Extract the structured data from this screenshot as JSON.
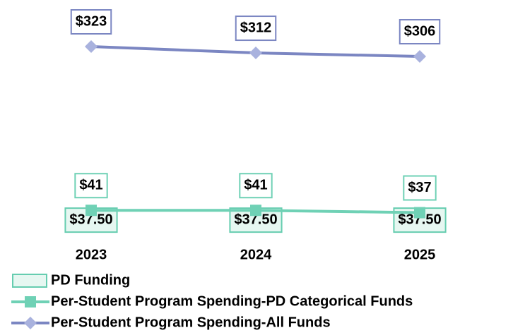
{
  "chart_data": {
    "type": "line",
    "categories": [
      "2023",
      "2024",
      "2025"
    ],
    "ylim": [
      0,
      340
    ],
    "series": [
      {
        "name": "PD Funding",
        "type": "bar",
        "color": "#e6f7f1",
        "border": "#66cdb0",
        "values": [
          37.5,
          37.5,
          37.5
        ],
        "value_labels": [
          "$37.50",
          "$37.50",
          "$37.50"
        ]
      },
      {
        "name": "Per-Student Program Spending-PD Categorical Funds",
        "type": "line",
        "marker": "square",
        "color": "#6fd1b5",
        "values": [
          41,
          41,
          37
        ],
        "value_labels": [
          "$41",
          "$41",
          "$37"
        ]
      },
      {
        "name": "Per-Student Program Spending-All Funds",
        "type": "line",
        "marker": "diamond",
        "color": "#7b86c2",
        "marker_color": "#a9b2de",
        "values": [
          323,
          312,
          306
        ],
        "value_labels": [
          "$323",
          "$312",
          "$306"
        ]
      }
    ]
  }
}
